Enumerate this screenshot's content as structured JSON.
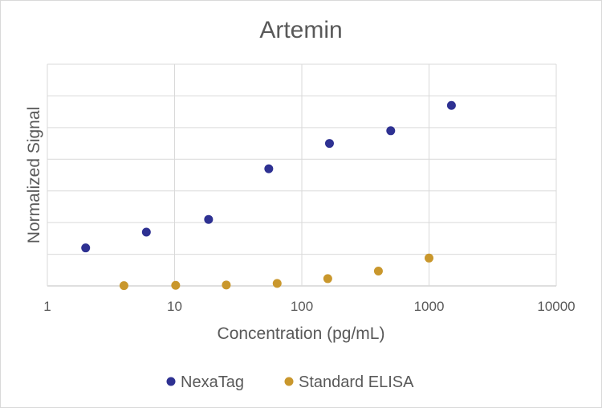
{
  "chart_data": {
    "type": "scatter",
    "title": "Artemin",
    "xlabel": "Concentration (pg/mL)",
    "ylabel": "Normalized Signal",
    "x_scale": "log",
    "xlim": [
      1,
      10000
    ],
    "ylim": [
      0,
      7
    ],
    "x_ticks": [
      "1",
      "10",
      "100",
      "1000",
      "10000"
    ],
    "grid": true,
    "legend_position": "bottom",
    "series": [
      {
        "name": "NexaTag",
        "color": "#2e3192",
        "points": [
          {
            "x": 2,
            "y": 1.2
          },
          {
            "x": 6,
            "y": 1.7
          },
          {
            "x": 18.5,
            "y": 2.1
          },
          {
            "x": 55,
            "y": 3.7
          },
          {
            "x": 165,
            "y": 4.5
          },
          {
            "x": 500,
            "y": 4.9
          },
          {
            "x": 1500,
            "y": 5.7
          }
        ]
      },
      {
        "name": "Standard ELISA",
        "color": "#c9972c",
        "points": [
          {
            "x": 4,
            "y": 0.01
          },
          {
            "x": 10.2,
            "y": 0.02
          },
          {
            "x": 25.5,
            "y": 0.03
          },
          {
            "x": 64,
            "y": 0.08
          },
          {
            "x": 160,
            "y": 0.23
          },
          {
            "x": 400,
            "y": 0.47
          },
          {
            "x": 1000,
            "y": 0.88
          }
        ]
      }
    ]
  }
}
